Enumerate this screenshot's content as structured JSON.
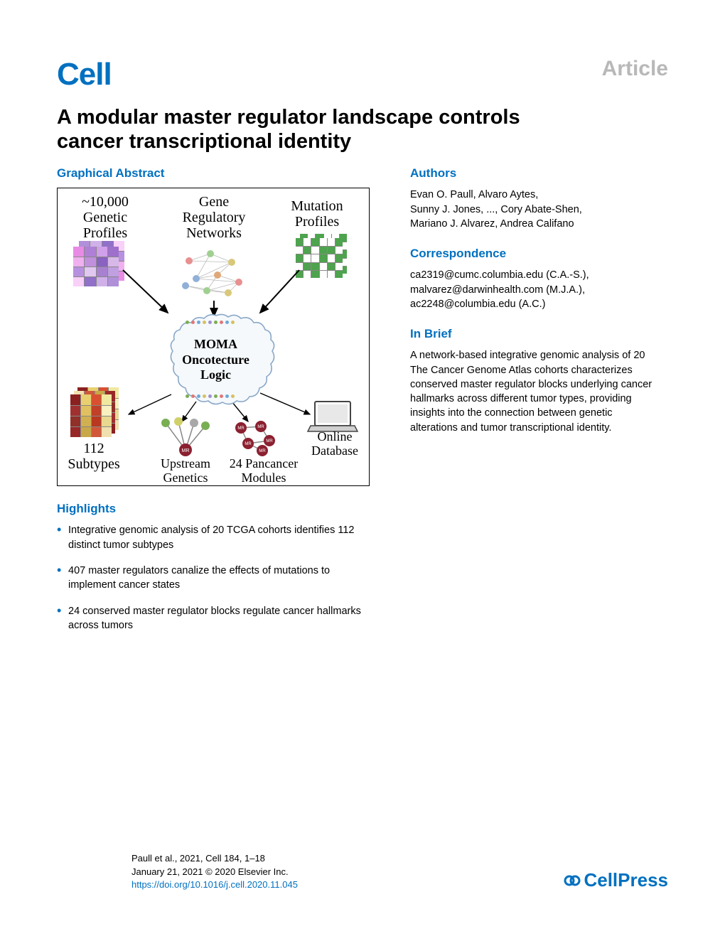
{
  "header": {
    "journal": "Cell",
    "badge": "Article"
  },
  "title": "A modular master regulator landscape controls cancer transcriptional identity",
  "graphical_abstract": {
    "heading": "Graphical Abstract",
    "labels": {
      "genetic_profiles": "~10,000\nGenetic\nProfiles",
      "gene_networks": "Gene\nRegulatory\nNetworks",
      "mutation_profiles": "Mutation\nProfiles",
      "moma_line1": "MOMA",
      "moma_line2": "Oncotecture",
      "moma_line3": "Logic",
      "subtypes": "112\nSubtypes",
      "upstream": "Upstream\nGenetics",
      "pancancer": "24 Pancancer\nModules",
      "online_db": "Online\nDatabase"
    },
    "colors": {
      "genetic_heatmap": [
        "#e88be5",
        "#b07fd6",
        "#d0a0ea",
        "#9f6fcc",
        "#f0b0f0",
        "#c090dd",
        "#8a62c0",
        "#d8b8e8",
        "#b890e0",
        "#e0c8f0",
        "#a880d0",
        "#c0a0e0",
        "#f8d0f8",
        "#9070c8",
        "#d0b0e8",
        "#b090d8"
      ],
      "mutation_heatmap_on": "#4ea34e",
      "mutation_heatmap_off": "#ffffff",
      "mutation_border": "#888",
      "subtype_heatmap": [
        "#8b2020",
        "#e8d070",
        "#d85030",
        "#f0e8a0",
        "#a03030",
        "#e0c060",
        "#c04028",
        "#f8f0c0",
        "#903028",
        "#d0b050",
        "#b83820",
        "#e8d890",
        "#982828",
        "#c8a848",
        "#d05838",
        "#f0e0b0"
      ],
      "network_nodes": [
        "#e89090",
        "#a0d090",
        "#d8c878",
        "#90b0d8",
        "#e0a878"
      ],
      "mr_nodes": "#8b2030",
      "upstream_leaf": [
        "#7aae53",
        "#d0d068",
        "#a8a8a8",
        "#7aae53"
      ],
      "dots": [
        "#7aae53",
        "#e07878",
        "#70a8d8",
        "#d8c060",
        "#a090d0",
        "#7aae53",
        "#e07878",
        "#70a8d8",
        "#d8c060"
      ]
    }
  },
  "sidebar": {
    "authors": {
      "heading": "Authors",
      "text": "Evan O. Paull, Alvaro Aytes,\nSunny J. Jones, ..., Cory Abate-Shen,\nMariano J. Alvarez, Andrea Califano"
    },
    "correspondence": {
      "heading": "Correspondence",
      "text": "ca2319@cumc.columbia.edu (C.A.-S.),\nmalvarez@darwinhealth.com (M.J.A.),\nac2248@columbia.edu (A.C.)"
    },
    "in_brief": {
      "heading": "In Brief",
      "text": "A network-based integrative genomic analysis of 20 The Cancer Genome Atlas cohorts characterizes conserved master regulator blocks underlying cancer hallmarks across different tumor types, providing insights into the connection between genetic alterations and tumor transcriptional identity."
    }
  },
  "highlights": {
    "heading": "Highlights",
    "items": [
      "Integrative genomic analysis of 20 TCGA cohorts identifies 112 distinct tumor subtypes",
      "407 master regulators canalize the effects of mutations to implement cancer states",
      "24 conserved master regulator blocks regulate cancer hallmarks across tumors"
    ]
  },
  "footer": {
    "citation_line1": "Paull et al., 2021, Cell 184, 1–18",
    "citation_line2": "January 21, 2021 © 2020 Elsevier Inc.",
    "doi": "https://doi.org/10.1016/j.cell.2020.11.045",
    "publisher": "CellPress"
  }
}
